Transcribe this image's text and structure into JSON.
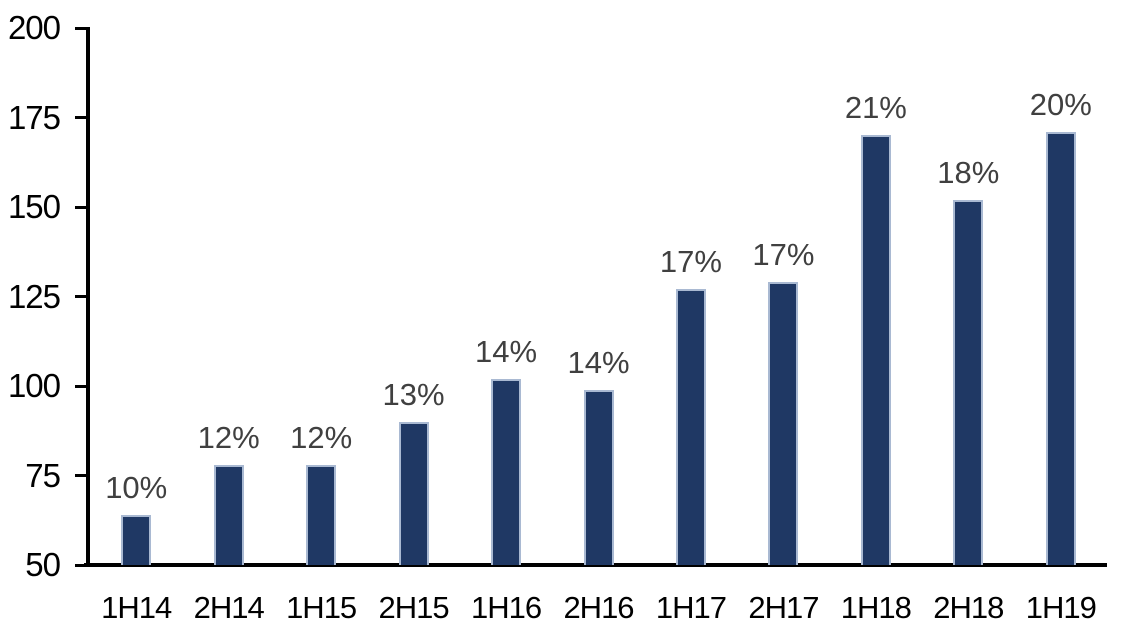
{
  "chart_data": {
    "type": "bar",
    "categories": [
      "1H14",
      "2H14",
      "1H15",
      "2H15",
      "1H16",
      "2H16",
      "1H17",
      "2H17",
      "1H18",
      "2H18",
      "1H19"
    ],
    "values": [
      64,
      78,
      78,
      90,
      102,
      99,
      127,
      129,
      170,
      152,
      171
    ],
    "data_labels": [
      "10%",
      "12%",
      "12%",
      "13%",
      "14%",
      "14%",
      "17%",
      "17%",
      "21%",
      "18%",
      "20%"
    ],
    "ylim": [
      50,
      200
    ],
    "yticks": [
      50,
      75,
      100,
      125,
      150,
      175,
      200
    ],
    "grid": false,
    "legend": false,
    "colors": {
      "bar_fill": "#1F3864",
      "bar_border": "#A9B9D2",
      "data_label": "#404040",
      "axis_text": "#000000",
      "axis_line": "#000000",
      "background": "#FFFFFF"
    }
  }
}
